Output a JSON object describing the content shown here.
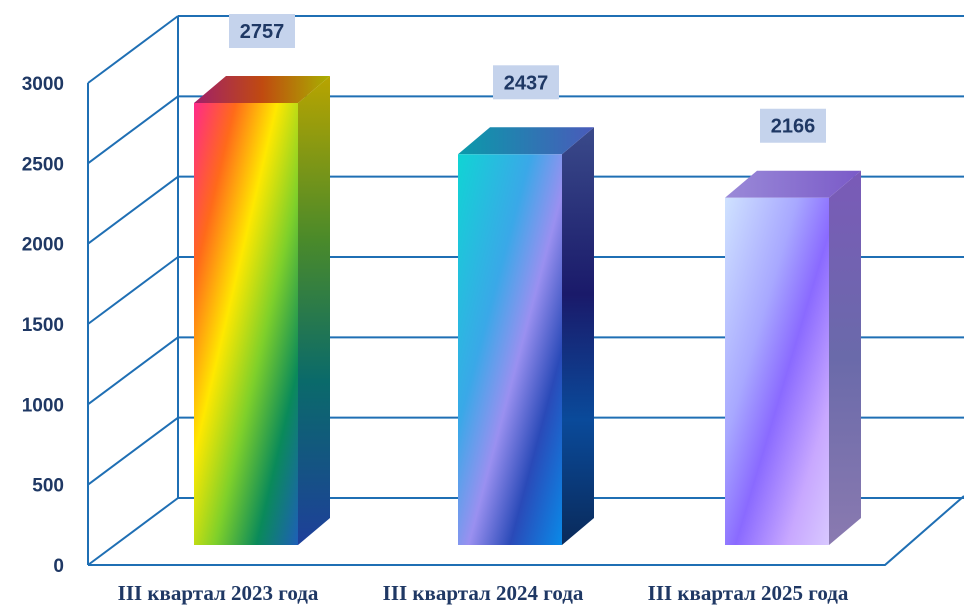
{
  "chart_data": {
    "type": "bar",
    "categories": [
      "III квартал 2023 года",
      "III квартал 2024 года",
      "III квартал 2025 года"
    ],
    "values": [
      2757,
      2437,
      2166
    ],
    "ylim": [
      0,
      3000
    ],
    "yticks": [
      0,
      500,
      1000,
      1500,
      2000,
      2500,
      3000
    ],
    "data_labels": [
      "2757",
      "2437",
      "2166"
    ],
    "grid": true,
    "style": "3d-column",
    "colors": {
      "grid": "#1f6fb4",
      "text": "#1f3864",
      "label_bg": "#c5d3ec"
    }
  }
}
